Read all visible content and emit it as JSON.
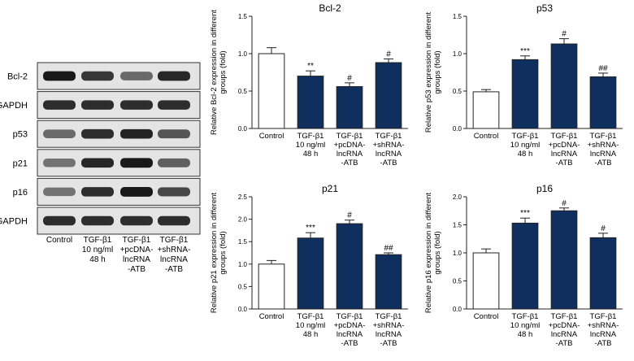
{
  "western_blot": {
    "rows": [
      {
        "label": "Bcl-2",
        "intensity": [
          0.95,
          0.8,
          0.55,
          0.88
        ]
      },
      {
        "label": "GAPDH",
        "intensity": [
          0.85,
          0.85,
          0.85,
          0.85
        ]
      },
      {
        "label": "p53",
        "intensity": [
          0.55,
          0.85,
          0.9,
          0.65
        ]
      },
      {
        "label": "p21",
        "intensity": [
          0.5,
          0.88,
          0.95,
          0.6
        ]
      },
      {
        "label": "p16",
        "intensity": [
          0.5,
          0.85,
          0.95,
          0.72
        ]
      },
      {
        "label": "GAPDH",
        "intensity": [
          0.85,
          0.85,
          0.85,
          0.85
        ]
      }
    ],
    "lanes": [
      [
        "Control"
      ],
      [
        "TGF-β1",
        "10 ng/ml",
        "48 h"
      ],
      [
        "TGF-β1",
        "+pcDNA-",
        "lncRNA",
        "-ATB"
      ],
      [
        "TGF-β1",
        "+shRNA-",
        "lncRNA",
        "-ATB"
      ]
    ]
  },
  "chart_data": [
    {
      "type": "bar",
      "title": "Bcl-2",
      "ylabel": [
        "Relative Bcl-2 expression in different",
        "groups (fold)"
      ],
      "categories": [
        [
          "Control"
        ],
        [
          "TGF-β1",
          "10 ng/ml",
          "48 h"
        ],
        [
          "TGF-β1",
          "+pcDNA-",
          "lncRNA",
          "-ATB"
        ],
        [
          "TGF-β1",
          "+shRNA-",
          "lncRNA",
          "-ATB"
        ]
      ],
      "values": [
        1.0,
        0.7,
        0.56,
        0.88
      ],
      "errors": [
        0.08,
        0.07,
        0.05,
        0.05
      ],
      "annotations": [
        "",
        "**",
        "#",
        "#"
      ],
      "ylim": [
        0,
        1.5
      ],
      "yticks": [
        "0.0",
        "0.5",
        "1.0",
        "1.5"
      ],
      "colors": [
        "#ffffff",
        "#0f2f5e",
        "#0f2f5e",
        "#0f2f5e"
      ]
    },
    {
      "type": "bar",
      "title": "p53",
      "ylabel": [
        "Relative p53 expression in different",
        "groups (fold)"
      ],
      "categories": [
        [
          "Control"
        ],
        [
          "TGF-β1",
          "10 ng/ml",
          "48 h"
        ],
        [
          "TGF-β1",
          "+pcDNA-",
          "lncRNA",
          "-ATB"
        ],
        [
          "TGF-β1",
          "+shRNA-",
          "lncRNA",
          "-ATB"
        ]
      ],
      "values": [
        0.49,
        0.92,
        1.13,
        0.69
      ],
      "errors": [
        0.03,
        0.05,
        0.07,
        0.05
      ],
      "annotations": [
        "",
        "***",
        "#",
        "##"
      ],
      "ylim": [
        0,
        1.5
      ],
      "yticks": [
        "0.0",
        "0.5",
        "1.0",
        "1.5"
      ],
      "colors": [
        "#ffffff",
        "#0f2f5e",
        "#0f2f5e",
        "#0f2f5e"
      ]
    },
    {
      "type": "bar",
      "title": "p21",
      "ylabel": [
        "Relative p21 expression in different",
        "groups (fold)"
      ],
      "categories": [
        [
          "Control"
        ],
        [
          "TGF-β1",
          "10 ng/ml",
          "48 h"
        ],
        [
          "TGF-β1",
          "+pcDNA-",
          "lncRNA",
          "-ATB"
        ],
        [
          "TGF-β1",
          "+shRNA-",
          "lncRNA",
          "-ATB"
        ]
      ],
      "values": [
        1.0,
        1.58,
        1.9,
        1.21
      ],
      "errors": [
        0.08,
        0.12,
        0.08,
        0.04
      ],
      "annotations": [
        "",
        "***",
        "#",
        "##"
      ],
      "ylim": [
        0,
        2.5
      ],
      "yticks": [
        "0.0",
        "0.5",
        "1.0",
        "1.5",
        "2.0",
        "2.5"
      ],
      "colors": [
        "#ffffff",
        "#0f2f5e",
        "#0f2f5e",
        "#0f2f5e"
      ]
    },
    {
      "type": "bar",
      "title": "p16",
      "ylabel": [
        "Relative p16 expression in different",
        "groups (fold)"
      ],
      "categories": [
        [
          "Control"
        ],
        [
          "TGF-β1",
          "10 ng/ml",
          "48 h"
        ],
        [
          "TGF-β1",
          "+pcDNA-",
          "lncRNA",
          "-ATB"
        ],
        [
          "TGF-β1",
          "+shRNA-",
          "lncRNA",
          "-ATB"
        ]
      ],
      "values": [
        1.0,
        1.53,
        1.75,
        1.27
      ],
      "errors": [
        0.07,
        0.09,
        0.05,
        0.08
      ],
      "annotations": [
        "",
        "***",
        "#",
        "#"
      ],
      "ylim": [
        0,
        2.0
      ],
      "yticks": [
        "0.0",
        "0.5",
        "1.0",
        "1.5",
        "2.0"
      ],
      "colors": [
        "#ffffff",
        "#0f2f5e",
        "#0f2f5e",
        "#0f2f5e"
      ]
    }
  ]
}
